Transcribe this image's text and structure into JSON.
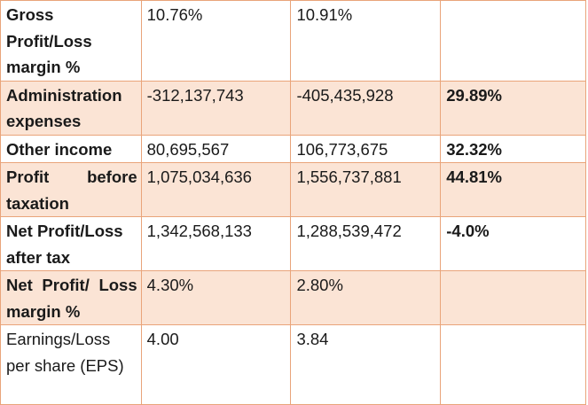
{
  "table": {
    "rows": [
      {
        "label": "Gross Profit/Loss margin %",
        "current": "10.76%",
        "previous": "10.91%",
        "change": "",
        "shaded": false,
        "label_bold": true,
        "justify": false,
        "lines": 3
      },
      {
        "label": "Administration expenses",
        "current": "-312,137,743",
        "previous": "-405,435,928",
        "change": "29.89%",
        "shaded": true,
        "label_bold": true,
        "justify": false,
        "lines": 2
      },
      {
        "label": "Other income",
        "current": "80,695,567",
        "previous": "106,773,675",
        "change": "32.32%",
        "shaded": false,
        "label_bold": true,
        "justify": false,
        "lines": 1
      },
      {
        "label": "Profit before taxation",
        "current": "1,075,034,636",
        "previous": "1,556,737,881",
        "change": "44.81%",
        "shaded": true,
        "label_bold": true,
        "justify": true,
        "lines": 2
      },
      {
        "label": "Net Profit/Loss after tax",
        "current": "1,342,568,133",
        "previous": "1,288,539,472",
        "change": "-4.0%",
        "shaded": false,
        "label_bold": true,
        "justify": false,
        "lines": 2
      },
      {
        "label": "Net Profit/ Loss margin %",
        "current": "4.30%",
        "previous": "2.80%",
        "change": "",
        "shaded": true,
        "label_bold": true,
        "justify": true,
        "lines": 2
      },
      {
        "label": "Earnings/Loss per share (EPS)",
        "current": "4.00",
        "previous": "3.84",
        "change": "",
        "shaded": false,
        "label_bold": false,
        "justify": true,
        "lines": 3
      }
    ]
  },
  "colors": {
    "shaded_row": "#fbe4d5",
    "border": "#e9a47a"
  }
}
